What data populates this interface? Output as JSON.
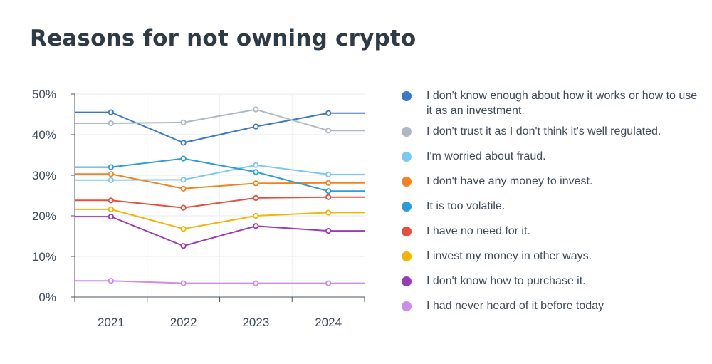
{
  "chart_data": {
    "type": "line",
    "title": "Reasons for not owning crypto",
    "categories": [
      "2021",
      "2022",
      "2023",
      "2024"
    ],
    "ylim": [
      0,
      50
    ],
    "yticks": [
      "0%",
      "10%",
      "20%",
      "30%",
      "40%",
      "50%"
    ],
    "grid": true,
    "legend_position": "right",
    "series": [
      {
        "name": "I don't know enough about how it works or how to use it as an investment.",
        "color": "#3a78c9",
        "values": [
          45.5,
          38.0,
          42.0,
          45.3
        ]
      },
      {
        "name": "I don't trust it as I don't think it's well regulated.",
        "color": "#aeb8c0",
        "values": [
          42.8,
          43.0,
          46.2,
          41.0
        ]
      },
      {
        "name": "I'm worried about fraud.",
        "color": "#79caf2",
        "values": [
          28.8,
          28.9,
          32.5,
          30.2
        ]
      },
      {
        "name": "I don't have any money to invest.",
        "color": "#f5821f",
        "values": [
          30.3,
          26.7,
          28.0,
          28.1
        ]
      },
      {
        "name": "It is too volatile.",
        "color": "#2d9cd8",
        "values": [
          32.0,
          34.1,
          30.8,
          26.1
        ]
      },
      {
        "name": "I have no need for it.",
        "color": "#e84d3d",
        "values": [
          23.8,
          22.0,
          24.4,
          24.6
        ]
      },
      {
        "name": "I invest my money in other ways.",
        "color": "#f4b400",
        "values": [
          21.6,
          16.8,
          20.0,
          20.8
        ]
      },
      {
        "name": "I don't know how to purchase it.",
        "color": "#9c3cb4",
        "values": [
          19.8,
          12.6,
          17.5,
          16.3
        ]
      },
      {
        "name": "I had never heard of it before today",
        "color": "#d08be8",
        "values": [
          4.0,
          3.4,
          3.4,
          3.4
        ]
      }
    ]
  }
}
